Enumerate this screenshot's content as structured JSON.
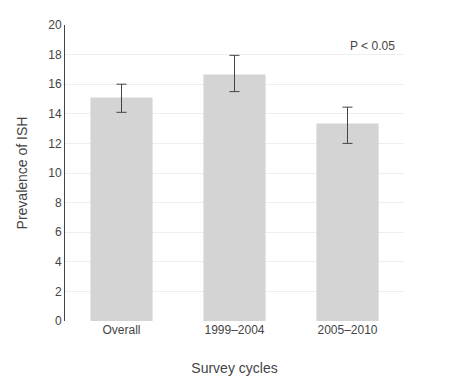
{
  "chart_data": {
    "type": "bar",
    "categories": [
      "Overall",
      "1999–2004",
      "2005–2010"
    ],
    "values": [
      15.1,
      16.65,
      13.35
    ],
    "error_lower": [
      1.0,
      1.15,
      1.35
    ],
    "error_upper": [
      0.9,
      1.3,
      1.1
    ],
    "color": "#d4d4d4",
    "ylim": [
      0,
      20
    ],
    "yticks": [
      0,
      2,
      4,
      6,
      8,
      10,
      12,
      14,
      16,
      18,
      20
    ],
    "xlabel": "Survey cycles",
    "ylabel": "Prevalence of ISH",
    "grid": true,
    "annotations": [
      {
        "text": "P < 0.05",
        "x": "2005–2010",
        "y": 18.6
      }
    ]
  }
}
